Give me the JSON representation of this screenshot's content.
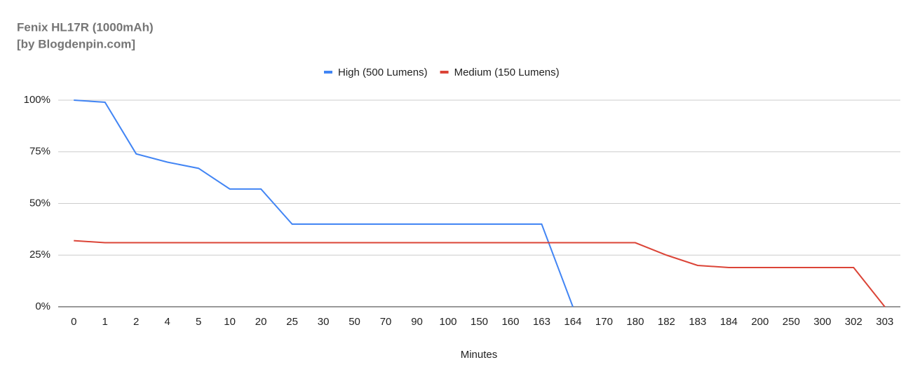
{
  "chart_data": {
    "type": "line",
    "title": "Fenix HL17R (1000mAh)",
    "subtitle": "[by Blogdenpin.com]",
    "x_label": "Minutes",
    "categories": [
      "0",
      "1",
      "2",
      "4",
      "5",
      "10",
      "20",
      "25",
      "30",
      "50",
      "70",
      "90",
      "100",
      "150",
      "160",
      "163",
      "164",
      "170",
      "180",
      "182",
      "183",
      "184",
      "200",
      "250",
      "300",
      "302",
      "303"
    ],
    "series": [
      {
        "name": "High (500 Lumens)",
        "color": "#4285f4",
        "values": [
          100,
          99,
          74,
          70,
          67,
          57,
          57,
          40,
          40,
          40,
          40,
          40,
          40,
          40,
          40,
          40,
          0,
          null,
          null,
          null,
          null,
          null,
          null,
          null,
          null,
          null,
          null
        ]
      },
      {
        "name": "Medium (150 Lumens)",
        "color": "#db4437",
        "values": [
          32,
          31,
          31,
          31,
          31,
          31,
          31,
          31,
          31,
          31,
          31,
          31,
          31,
          31,
          31,
          31,
          31,
          31,
          31,
          25,
          20,
          19,
          19,
          19,
          19,
          19,
          0
        ]
      }
    ],
    "ylim": [
      0,
      100
    ],
    "yticks": [
      {
        "value": 0,
        "label": "0%"
      },
      {
        "value": 25,
        "label": "25%"
      },
      {
        "value": 50,
        "label": "50%"
      },
      {
        "value": 75,
        "label": "75%"
      },
      {
        "value": 100,
        "label": "100%"
      }
    ],
    "grid": true,
    "legend": "top"
  }
}
